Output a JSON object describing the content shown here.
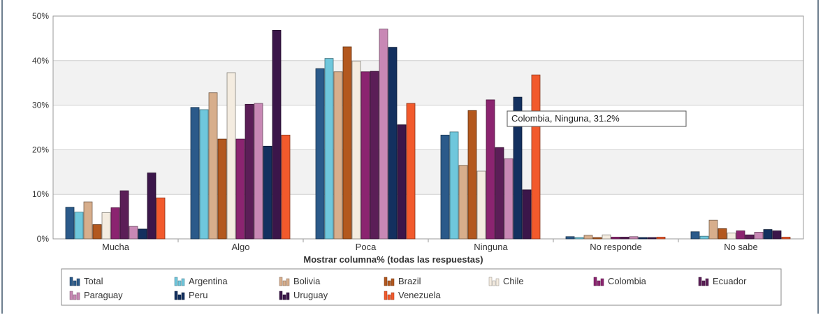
{
  "chart_data": {
    "type": "bar",
    "title": "",
    "xlabel": "Mostrar columna% (todas las respuestas)",
    "ylabel": "",
    "ylim": [
      0,
      50
    ],
    "yticks": [
      "0%",
      "10%",
      "20%",
      "30%",
      "40%",
      "50%"
    ],
    "ytick_values": [
      0,
      10,
      20,
      30,
      40,
      50
    ],
    "grid": true,
    "legend_position": "bottom",
    "categories": [
      "Mucha",
      "Algo",
      "Poca",
      "Ninguna",
      "No responde",
      "No sabe"
    ],
    "series": [
      {
        "name": "Total",
        "color": "#2b5a8a",
        "values": [
          7.1,
          29.5,
          38.2,
          23.3,
          0.5,
          1.6
        ]
      },
      {
        "name": "Argentina",
        "color": "#6fc7dc",
        "values": [
          6.0,
          29.0,
          40.5,
          24.0,
          0.3,
          0.6
        ]
      },
      {
        "name": "Bolivia",
        "color": "#d7ae8c",
        "values": [
          8.3,
          32.8,
          37.5,
          16.5,
          0.8,
          4.2
        ]
      },
      {
        "name": "Brazil",
        "color": "#b3581e",
        "values": [
          3.2,
          22.4,
          43.1,
          28.8,
          0.3,
          2.3
        ]
      },
      {
        "name": "Chile",
        "color": "#f4ece0",
        "values": [
          5.9,
          37.3,
          39.9,
          15.2,
          0.9,
          1.3
        ]
      },
      {
        "name": "Colombia",
        "color": "#8b2470",
        "values": [
          7.0,
          22.4,
          37.5,
          31.2,
          0.4,
          1.8
        ]
      },
      {
        "name": "Ecuador",
        "color": "#5b1e57",
        "values": [
          10.8,
          30.2,
          37.6,
          20.5,
          0.4,
          0.9
        ]
      },
      {
        "name": "Paraguay",
        "color": "#c888b5",
        "values": [
          2.8,
          30.4,
          47.1,
          18.0,
          0.5,
          1.5
        ]
      },
      {
        "name": "Peru",
        "color": "#13305f",
        "values": [
          2.2,
          20.8,
          43.0,
          31.8,
          0.3,
          2.1
        ]
      },
      {
        "name": "Uruguay",
        "color": "#3b164a",
        "values": [
          14.8,
          46.8,
          25.6,
          11.0,
          0.3,
          1.8
        ]
      },
      {
        "name": "Venezuela",
        "color": "#f25a2c",
        "values": [
          9.2,
          23.3,
          30.4,
          36.8,
          0.4,
          0.4
        ]
      }
    ],
    "tooltip": {
      "text": "Colombia, Ninguna, 31.2%"
    }
  }
}
